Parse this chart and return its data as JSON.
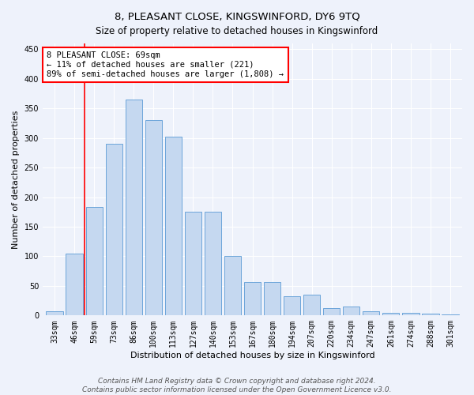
{
  "title": "8, PLEASANT CLOSE, KINGSWINFORD, DY6 9TQ",
  "subtitle": "Size of property relative to detached houses in Kingswinford",
  "xlabel": "Distribution of detached houses by size in Kingswinford",
  "ylabel": "Number of detached properties",
  "categories": [
    "33sqm",
    "46sqm",
    "59sqm",
    "73sqm",
    "86sqm",
    "100sqm",
    "113sqm",
    "127sqm",
    "140sqm",
    "153sqm",
    "167sqm",
    "180sqm",
    "194sqm",
    "207sqm",
    "220sqm",
    "234sqm",
    "247sqm",
    "261sqm",
    "274sqm",
    "288sqm",
    "301sqm"
  ],
  "values": [
    7,
    105,
    183,
    290,
    365,
    330,
    303,
    175,
    175,
    100,
    57,
    57,
    32,
    35,
    12,
    15,
    7,
    5,
    5,
    3,
    2
  ],
  "bar_color": "#c5d8f0",
  "bar_edge_color": "#5b9bd5",
  "vline_x": 1.5,
  "vline_color": "red",
  "annotation_line1": "8 PLEASANT CLOSE: 69sqm",
  "annotation_line2": "← 11% of detached houses are smaller (221)",
  "annotation_line3": "89% of semi-detached houses are larger (1,808) →",
  "annotation_box_color": "white",
  "annotation_box_edge": "red",
  "ylim": [
    0,
    460
  ],
  "yticks": [
    0,
    50,
    100,
    150,
    200,
    250,
    300,
    350,
    400,
    450
  ],
  "footer1": "Contains HM Land Registry data © Crown copyright and database right 2024.",
  "footer2": "Contains public sector information licensed under the Open Government Licence v3.0.",
  "title_fontsize": 9.5,
  "subtitle_fontsize": 8.5,
  "axis_label_fontsize": 8,
  "tick_fontsize": 7,
  "footer_fontsize": 6.5,
  "annotation_fontsize": 7.5,
  "background_color": "#eef2fb"
}
